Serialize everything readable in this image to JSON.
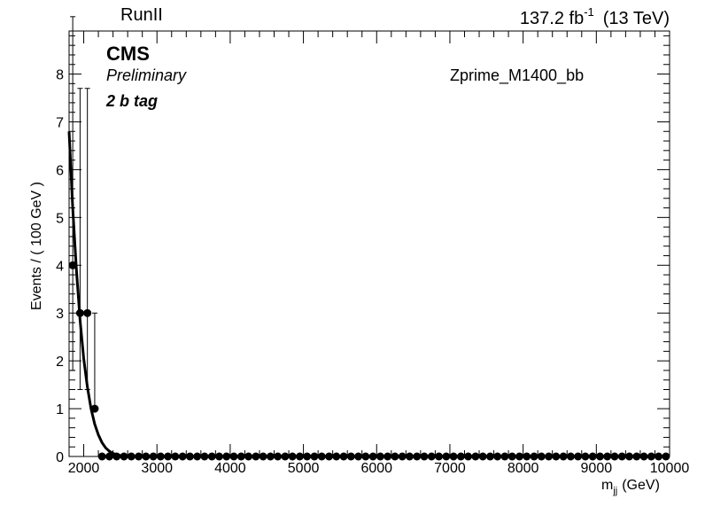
{
  "header": {
    "left_label": "RunII",
    "lumi_value": "137.2 fb",
    "lumi_exponent": "-1",
    "energy": "(13 TeV)"
  },
  "labels": {
    "cms": "CMS",
    "preliminary": "Preliminary",
    "category": "2 b tag",
    "sample": "Zprime_M1400_bb"
  },
  "chart_data": {
    "type": "scatter",
    "xlabel_main": "m",
    "xlabel_sub": "jj",
    "xlabel_unit": "(GeV)",
    "ylabel": "Events / ( 100 GeV )",
    "xlim": [
      1800,
      10000
    ],
    "ylim": [
      0,
      8.9
    ],
    "x_ticks": [
      2000,
      3000,
      4000,
      5000,
      6000,
      7000,
      8000,
      9000,
      10000
    ],
    "y_ticks": [
      0,
      1,
      2,
      3,
      4,
      5,
      6,
      7,
      8
    ],
    "colors": {
      "points": "#000000",
      "fit": "#000000"
    },
    "series": [
      {
        "kind": "data",
        "x": [
          1850,
          1950,
          2050,
          2150,
          2250,
          2350,
          2450,
          2550,
          2650,
          2750,
          2850,
          2950,
          3050,
          3150,
          3250,
          3350,
          3450,
          3550,
          3650,
          3750,
          3850,
          3950,
          4050,
          4150,
          4250,
          4350,
          4450,
          4550,
          4650,
          4750,
          4850,
          4950,
          5050,
          5150,
          5250,
          5350,
          5450,
          5550,
          5650,
          5750,
          5850,
          5950,
          6050,
          6150,
          6250,
          6350,
          6450,
          6550,
          6650,
          6750,
          6850,
          6950,
          7050,
          7150,
          7250,
          7350,
          7450,
          7550,
          7650,
          7750,
          7850,
          7950,
          8050,
          8150,
          8250,
          8350,
          8450,
          8550,
          8650,
          8750,
          8850,
          8950,
          9050,
          9150,
          9250,
          9350,
          9450,
          9550,
          9650,
          9750,
          9850,
          9950
        ],
        "y": [
          4,
          3,
          3,
          1,
          0,
          0,
          0,
          0,
          0,
          0,
          0,
          0,
          0,
          0,
          0,
          0,
          0,
          0,
          0,
          0,
          0,
          0,
          0,
          0,
          0,
          0,
          0,
          0,
          0,
          0,
          0,
          0,
          0,
          0,
          0,
          0,
          0,
          0,
          0,
          0,
          0,
          0,
          0,
          0,
          0,
          0,
          0,
          0,
          0,
          0,
          0,
          0,
          0,
          0,
          0,
          0,
          0,
          0,
          0,
          0,
          0,
          0,
          0,
          0,
          0,
          0,
          0,
          0,
          0,
          0,
          0,
          0,
          0,
          0,
          0,
          0,
          0,
          0,
          0,
          0,
          0,
          0
        ],
        "err_up": [
          5.2,
          4.7,
          4.7,
          2.0
        ],
        "err_down": [
          2.2,
          1.6,
          1.6,
          0.0
        ]
      },
      {
        "kind": "fit",
        "x": [
          1800,
          1850,
          1900,
          1950,
          2000,
          2050,
          2100,
          2150,
          2200,
          2250,
          2300,
          2350,
          2400,
          2450,
          2500,
          2600,
          2700,
          2800,
          3000,
          4000,
          6000,
          8000,
          10000
        ],
        "y": [
          6.8,
          5.2,
          3.9,
          2.85,
          2.05,
          1.45,
          1.0,
          0.68,
          0.45,
          0.29,
          0.18,
          0.11,
          0.065,
          0.038,
          0.02,
          0.006,
          0.002,
          0.0008,
          0.0001,
          0,
          0,
          0,
          0
        ]
      }
    ]
  }
}
